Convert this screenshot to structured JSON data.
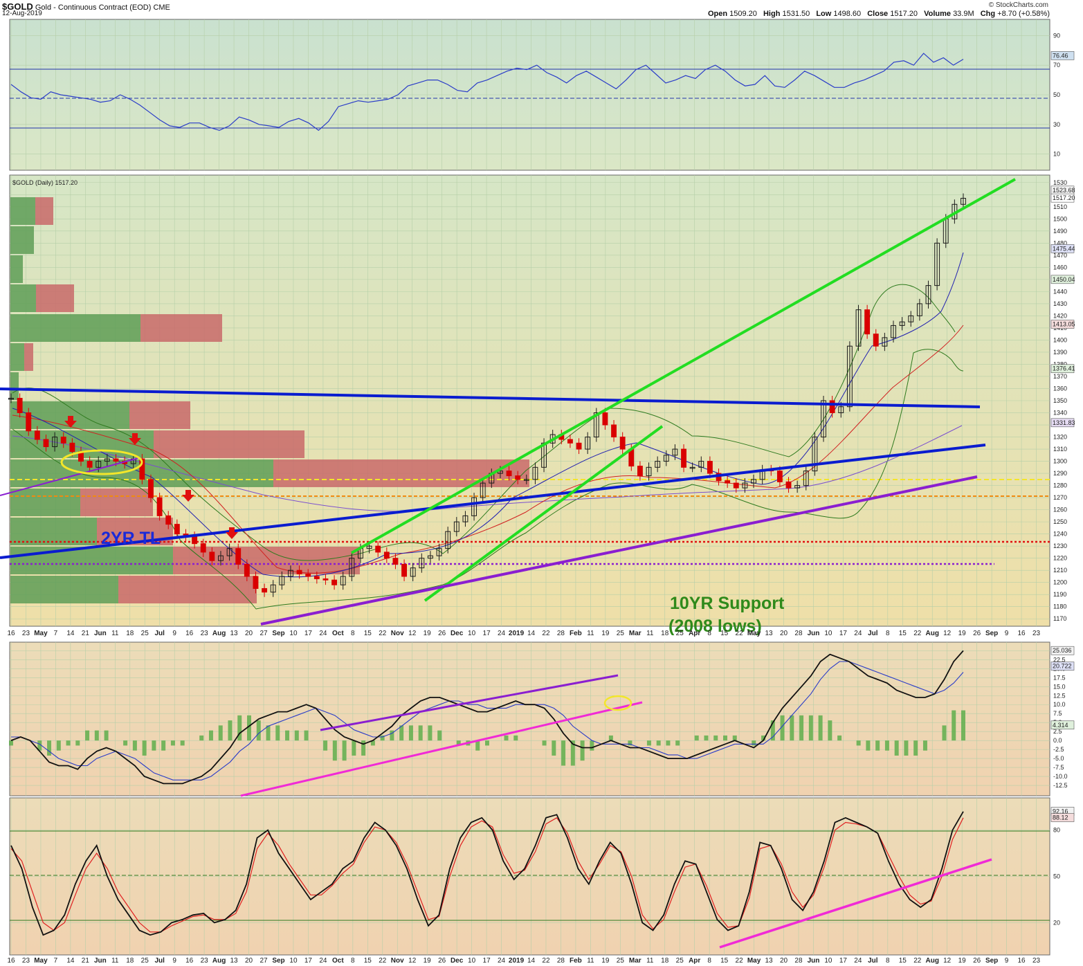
{
  "header": {
    "symbol": "$GOLD",
    "description": "Gold - Continuous Contract (EOD)",
    "exchange": "CME",
    "date": "12-Aug-2019",
    "brand": "© StockCharts.com",
    "open_label": "Open",
    "open": "1509.20",
    "high_label": "High",
    "high": "1531.50",
    "low_label": "Low",
    "low": "1498.60",
    "close_label": "Close",
    "close": "1517.20",
    "volume_label": "Volume",
    "volume": "33.9M",
    "chg_label": "Chg",
    "chg": "+8.70 (+0.58%)"
  },
  "chart_data": [
    {
      "panel": "rsi",
      "type": "line",
      "ylim": [
        0,
        100
      ],
      "ticks": [
        10,
        30,
        50,
        70,
        90
      ],
      "last_value_label": "76.46",
      "last_value": 76.46,
      "series": [
        {
          "values": [
            57,
            52,
            48,
            47,
            52,
            50,
            49,
            48,
            47,
            45,
            46,
            50,
            47,
            43,
            38,
            33,
            29,
            28,
            31,
            31,
            28,
            26,
            29,
            35,
            33,
            30,
            29,
            28,
            32,
            34,
            31,
            26,
            32,
            42,
            44,
            46,
            45,
            46,
            47,
            50,
            56,
            58,
            60,
            60,
            57,
            53,
            52,
            58,
            60,
            63,
            66,
            68,
            67,
            70,
            65,
            62,
            58,
            63,
            66,
            62,
            58,
            54,
            60,
            67,
            70,
            64,
            58,
            60,
            63,
            61,
            67,
            70,
            66,
            60,
            56,
            57,
            63,
            56,
            55,
            60,
            66,
            63,
            59,
            55,
            55,
            58,
            60,
            63,
            66,
            72,
            73,
            70,
            78,
            72,
            75,
            70,
            74
          ]
        }
      ]
    },
    {
      "panel": "price",
      "type": "candlestick",
      "title": "$GOLD (Daily) 1517.20",
      "ylim": [
        1165,
        1535
      ],
      "ticks": [
        1170,
        1180,
        1190,
        1200,
        1210,
        1220,
        1230,
        1240,
        1250,
        1260,
        1270,
        1280,
        1290,
        1300,
        1310,
        1320,
        1330,
        1340,
        1350,
        1360,
        1370,
        1380,
        1390,
        1400,
        1410,
        1420,
        1430,
        1440,
        1450,
        1460,
        1470,
        1480,
        1490,
        1500,
        1510,
        1520,
        1530
      ],
      "value_labels": [
        "1523.68",
        "1517.20",
        "1475.44",
        "1450.04",
        "1413.05",
        "1376.41",
        "1331.83"
      ],
      "value_label_levels": [
        1523.68,
        1517.2,
        1475.44,
        1450.04,
        1413.05,
        1376.41,
        1331.83
      ],
      "series": [
        {
          "name": "close",
          "values": [
            1352,
            1340,
            1325,
            1318,
            1312,
            1320,
            1315,
            1308,
            1300,
            1295,
            1300,
            1302,
            1300,
            1298,
            1302,
            1285,
            1270,
            1255,
            1248,
            1240,
            1238,
            1232,
            1225,
            1218,
            1222,
            1228,
            1215,
            1205,
            1195,
            1192,
            1198,
            1205,
            1210,
            1207,
            1205,
            1203,
            1202,
            1198,
            1205,
            1220,
            1228,
            1230,
            1225,
            1220,
            1215,
            1205,
            1212,
            1220,
            1222,
            1228,
            1242,
            1250,
            1255,
            1270,
            1282,
            1290,
            1292,
            1288,
            1285,
            1285,
            1295,
            1315,
            1322,
            1318,
            1315,
            1310,
            1320,
            1340,
            1330,
            1320,
            1310,
            1296,
            1288,
            1295,
            1300,
            1305,
            1310,
            1295,
            1295,
            1300,
            1290,
            1284,
            1282,
            1278,
            1282,
            1285,
            1293,
            1292,
            1283,
            1278,
            1280,
            1292,
            1320,
            1350,
            1340,
            1345,
            1395,
            1425,
            1405,
            1395,
            1402,
            1412,
            1415,
            1420,
            1430,
            1445,
            1480,
            1500,
            1512,
            1517
          ]
        }
      ],
      "annotations": [
        "2YR TL",
        "10YR Support",
        "(2008 lows)"
      ]
    },
    {
      "panel": "macd",
      "type": "line",
      "ylim": [
        -15,
        27
      ],
      "ticks": [
        -12.5,
        -10.0,
        -7.5,
        -5.0,
        -2.5,
        0.0,
        2.5,
        5.0,
        7.5,
        10.0,
        12.5,
        15.0,
        17.5,
        20.0,
        22.5,
        25.0
      ],
      "value_labels": [
        "25.036",
        "20.722",
        "4.314"
      ],
      "value_label_levels": [
        25.036,
        20.722,
        4.314
      ],
      "series": [
        {
          "name": "macd",
          "values": [
            0,
            1,
            0,
            -3,
            -6,
            -7,
            -7,
            -8,
            -5,
            -3,
            -2,
            -3,
            -5,
            -7,
            -10,
            -11,
            -12,
            -12,
            -12,
            -11,
            -10,
            -8,
            -5,
            -2,
            2,
            4,
            6,
            7,
            8,
            8,
            9,
            10,
            9,
            6,
            3,
            1,
            0,
            -1,
            0,
            2,
            4,
            7,
            9,
            11,
            12,
            12,
            11,
            10,
            9,
            8,
            8,
            9,
            10,
            11,
            10,
            10,
            9,
            6,
            2,
            -1,
            -2,
            -2,
            -1,
            0,
            -1,
            -2,
            -2,
            -3,
            -4,
            -5,
            -5,
            -5,
            -4,
            -3,
            -2,
            -1,
            0,
            -1,
            -2,
            0,
            5,
            9,
            12,
            15,
            18,
            22,
            24,
            23,
            22,
            20,
            18,
            17,
            16,
            14,
            13,
            12,
            12,
            13,
            17,
            22,
            25
          ]
        },
        {
          "name": "signal",
          "values": [
            1,
            1,
            0,
            -1,
            -3,
            -5,
            -6,
            -7,
            -7,
            -5,
            -4,
            -3,
            -4,
            -5,
            -7,
            -9,
            -10,
            -11,
            -11,
            -11,
            -11,
            -10,
            -8,
            -6,
            -3,
            -1,
            2,
            4,
            5,
            6,
            7,
            8,
            9,
            8,
            7,
            5,
            3,
            2,
            1,
            1,
            2,
            4,
            6,
            8,
            9,
            10,
            11,
            11,
            10,
            10,
            9,
            9,
            9,
            10,
            10,
            10,
            10,
            9,
            7,
            4,
            2,
            0,
            -1,
            -1,
            -1,
            -1,
            -2,
            -2,
            -3,
            -4,
            -4,
            -5,
            -5,
            -4,
            -3,
            -2,
            -1,
            -1,
            -1,
            -1,
            1,
            4,
            7,
            10,
            13,
            17,
            20,
            22,
            22,
            21,
            20,
            19,
            18,
            17,
            16,
            15,
            14,
            13,
            14,
            16,
            19
          ]
        }
      ]
    },
    {
      "panel": "stochastic",
      "type": "line",
      "ylim": [
        0,
        100
      ],
      "ticks": [
        20,
        50,
        80
      ],
      "value_labels": [
        "92.16",
        "88.12"
      ],
      "value_label_levels": [
        92.16,
        88.12
      ],
      "series": [
        {
          "name": "%K",
          "values": [
            70,
            55,
            30,
            12,
            15,
            25,
            45,
            60,
            70,
            50,
            35,
            25,
            15,
            12,
            14,
            20,
            22,
            25,
            26,
            20,
            22,
            28,
            45,
            75,
            80,
            65,
            55,
            45,
            35,
            40,
            45,
            55,
            60,
            75,
            85,
            80,
            70,
            55,
            35,
            18,
            25,
            55,
            75,
            85,
            88,
            80,
            60,
            48,
            55,
            70,
            88,
            90,
            75,
            55,
            45,
            60,
            72,
            65,
            45,
            20,
            15,
            25,
            45,
            60,
            58,
            40,
            22,
            15,
            18,
            40,
            72,
            70,
            55,
            35,
            28,
            40,
            60,
            85,
            88,
            85,
            82,
            78,
            60,
            45,
            35,
            30,
            35,
            55,
            80,
            92
          ]
        },
        {
          "name": "%D",
          "values": [
            68,
            60,
            40,
            20,
            15,
            20,
            38,
            55,
            65,
            55,
            40,
            30,
            20,
            14,
            14,
            18,
            21,
            24,
            25,
            22,
            22,
            26,
            40,
            68,
            78,
            70,
            58,
            48,
            38,
            38,
            44,
            52,
            58,
            72,
            82,
            80,
            72,
            58,
            40,
            22,
            24,
            50,
            70,
            82,
            86,
            82,
            64,
            52,
            54,
            66,
            84,
            88,
            78,
            60,
            48,
            58,
            70,
            66,
            50,
            25,
            16,
            22,
            40,
            56,
            58,
            44,
            26,
            17,
            18,
            36,
            68,
            70,
            58,
            40,
            30,
            38,
            56,
            80,
            85,
            84,
            82,
            78,
            64,
            50,
            38,
            32,
            34,
            50,
            74,
            88
          ]
        }
      ]
    }
  ],
  "x_axis": {
    "tick_labels": [
      "16",
      "23",
      "May",
      "7",
      "14",
      "21",
      "Jun",
      "11",
      "18",
      "25",
      "Jul",
      "9",
      "16",
      "23",
      "Aug",
      "13",
      "20",
      "27",
      "Sep",
      "10",
      "17",
      "24",
      "Oct",
      "8",
      "15",
      "22",
      "Nov",
      "12",
      "19",
      "26",
      "Dec",
      "10",
      "17",
      "24",
      "2019",
      "14",
      "22",
      "28",
      "Feb",
      "11",
      "19",
      "25",
      "Mar",
      "11",
      "18",
      "25",
      "Apr",
      "8",
      "15",
      "22",
      "May",
      "13",
      "20",
      "28",
      "Jun",
      "10",
      "17",
      "24",
      "Jul",
      "8",
      "15",
      "22",
      "Aug",
      "12",
      "19",
      "26",
      "Sep",
      "9",
      "16",
      "23"
    ],
    "bold_labels": [
      "May",
      "Jun",
      "Jul",
      "Aug",
      "Sep",
      "Oct",
      "Nov",
      "Dec",
      "2019",
      "Feb",
      "Mar",
      "Apr",
      "May",
      "Jun",
      "Jul",
      "Aug",
      "Sep"
    ]
  },
  "colors": {
    "panel_rsi": "#cfe3cf",
    "panel_price": "#ece8b4",
    "panel_lower": "#f0d6b0",
    "grid": "#a9c6a2",
    "trend_blue": "#0a1ccf",
    "trend_green": "#22dd22",
    "trend_purple": "#8a1ed0",
    "trend_magenta": "#f02ad6",
    "up_candle": "#1a1a1a",
    "down_candle": "#d90000",
    "label_2yr": "#1a2ad8",
    "label_10yr": "#2f8a1b"
  }
}
